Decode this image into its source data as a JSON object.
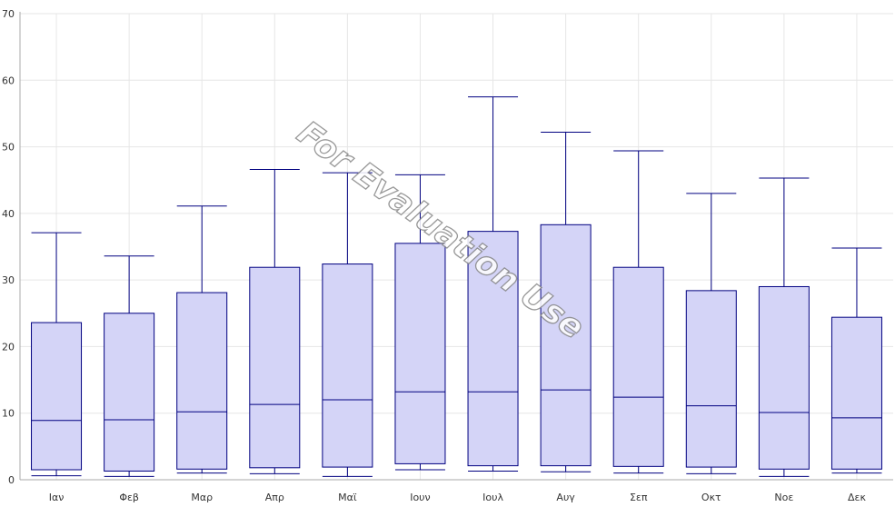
{
  "chart_data": {
    "type": "boxplot",
    "title": "",
    "xlabel": "",
    "ylabel": "",
    "ylim": [
      0,
      70
    ],
    "yticks": [
      0,
      10,
      20,
      30,
      40,
      50,
      60,
      70
    ],
    "grid": true,
    "categories": [
      "Ιαν",
      "Φεβ",
      "Μαρ",
      "Απρ",
      "Μαϊ",
      "Ιουν",
      "Ιουλ",
      "Αυγ",
      "Σεπ",
      "Οκτ",
      "Νοε",
      "Δεκ"
    ],
    "boxes": [
      {
        "min": 0.6,
        "q1": 1.5,
        "median": 8.9,
        "q3": 23.6,
        "max": 37.1
      },
      {
        "min": 0.5,
        "q1": 1.3,
        "median": 9.0,
        "q3": 25.0,
        "max": 33.6
      },
      {
        "min": 1.0,
        "q1": 1.6,
        "median": 10.2,
        "q3": 28.1,
        "max": 41.1
      },
      {
        "min": 0.9,
        "q1": 1.8,
        "median": 11.3,
        "q3": 31.9,
        "max": 46.6
      },
      {
        "min": 0.5,
        "q1": 1.9,
        "median": 12.0,
        "q3": 32.4,
        "max": 46.1
      },
      {
        "min": 1.5,
        "q1": 2.4,
        "median": 13.2,
        "q3": 35.5,
        "max": 45.8
      },
      {
        "min": 1.3,
        "q1": 2.1,
        "median": 13.2,
        "q3": 37.3,
        "max": 57.5
      },
      {
        "min": 1.2,
        "q1": 2.1,
        "median": 13.5,
        "q3": 38.3,
        "max": 52.2
      },
      {
        "min": 1.0,
        "q1": 2.0,
        "median": 12.4,
        "q3": 31.9,
        "max": 49.4
      },
      {
        "min": 0.9,
        "q1": 1.9,
        "median": 11.1,
        "q3": 28.4,
        "max": 43.0
      },
      {
        "min": 0.5,
        "q1": 1.6,
        "median": 10.1,
        "q3": 29.0,
        "max": 45.3
      },
      {
        "min": 1.0,
        "q1": 1.6,
        "median": 9.3,
        "q3": 24.4,
        "max": 34.8
      }
    ],
    "colors": {
      "box_fill": "#d4d4f7",
      "box_stroke": "#000080",
      "grid": "#e6e6e6",
      "axis": "#aaaaaa"
    }
  },
  "watermark": "For Evaluation Use"
}
